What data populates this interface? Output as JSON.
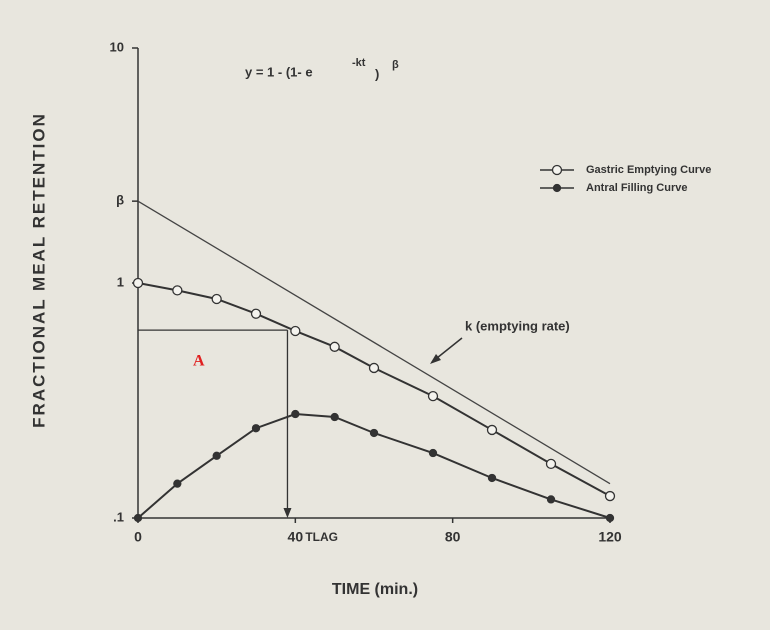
{
  "chart_data": {
    "type": "line",
    "x_label": "TIME (min.)",
    "y_label": "FRACTIONAL MEAL RETENTION",
    "log_y": true,
    "xlim": [
      0,
      120
    ],
    "ylim": [
      0.1,
      10
    ],
    "xticks": [
      0,
      40,
      80,
      120
    ],
    "yticks": [
      10,
      {
        "value": 2.23,
        "label": "β"
      },
      1,
      {
        "value": 0.1,
        "label": ".1"
      }
    ],
    "x": [
      0,
      10,
      20,
      30,
      40,
      50,
      60,
      75,
      90,
      105,
      120
    ],
    "series": [
      {
        "name": "Gastric Emptying Curve",
        "color": "#333333",
        "marker": "open",
        "values": [
          1.0,
          0.93,
          0.855,
          0.74,
          0.625,
          0.535,
          0.435,
          0.33,
          0.237,
          0.17,
          0.124
        ]
      },
      {
        "name": "Antral Filling Curve",
        "color": "#333333",
        "marker": "filled",
        "values": [
          0.1,
          0.14,
          0.184,
          0.241,
          0.277,
          0.269,
          0.23,
          0.189,
          0.148,
          0.12,
          0.1
        ]
      }
    ],
    "fit_line": {
      "x": [
        0,
        120
      ],
      "values": [
        2.23,
        0.14
      ]
    },
    "tlag": {
      "x": 38,
      "value": 0.63,
      "label": "TLAG"
    },
    "equation": {
      "base": "y = 1 - (1- e",
      "exponent": "-kt",
      "close": ")",
      "power": "β"
    },
    "annotation_k": "k (emptying rate)",
    "annotation_a": "A",
    "legend": "upper right"
  }
}
